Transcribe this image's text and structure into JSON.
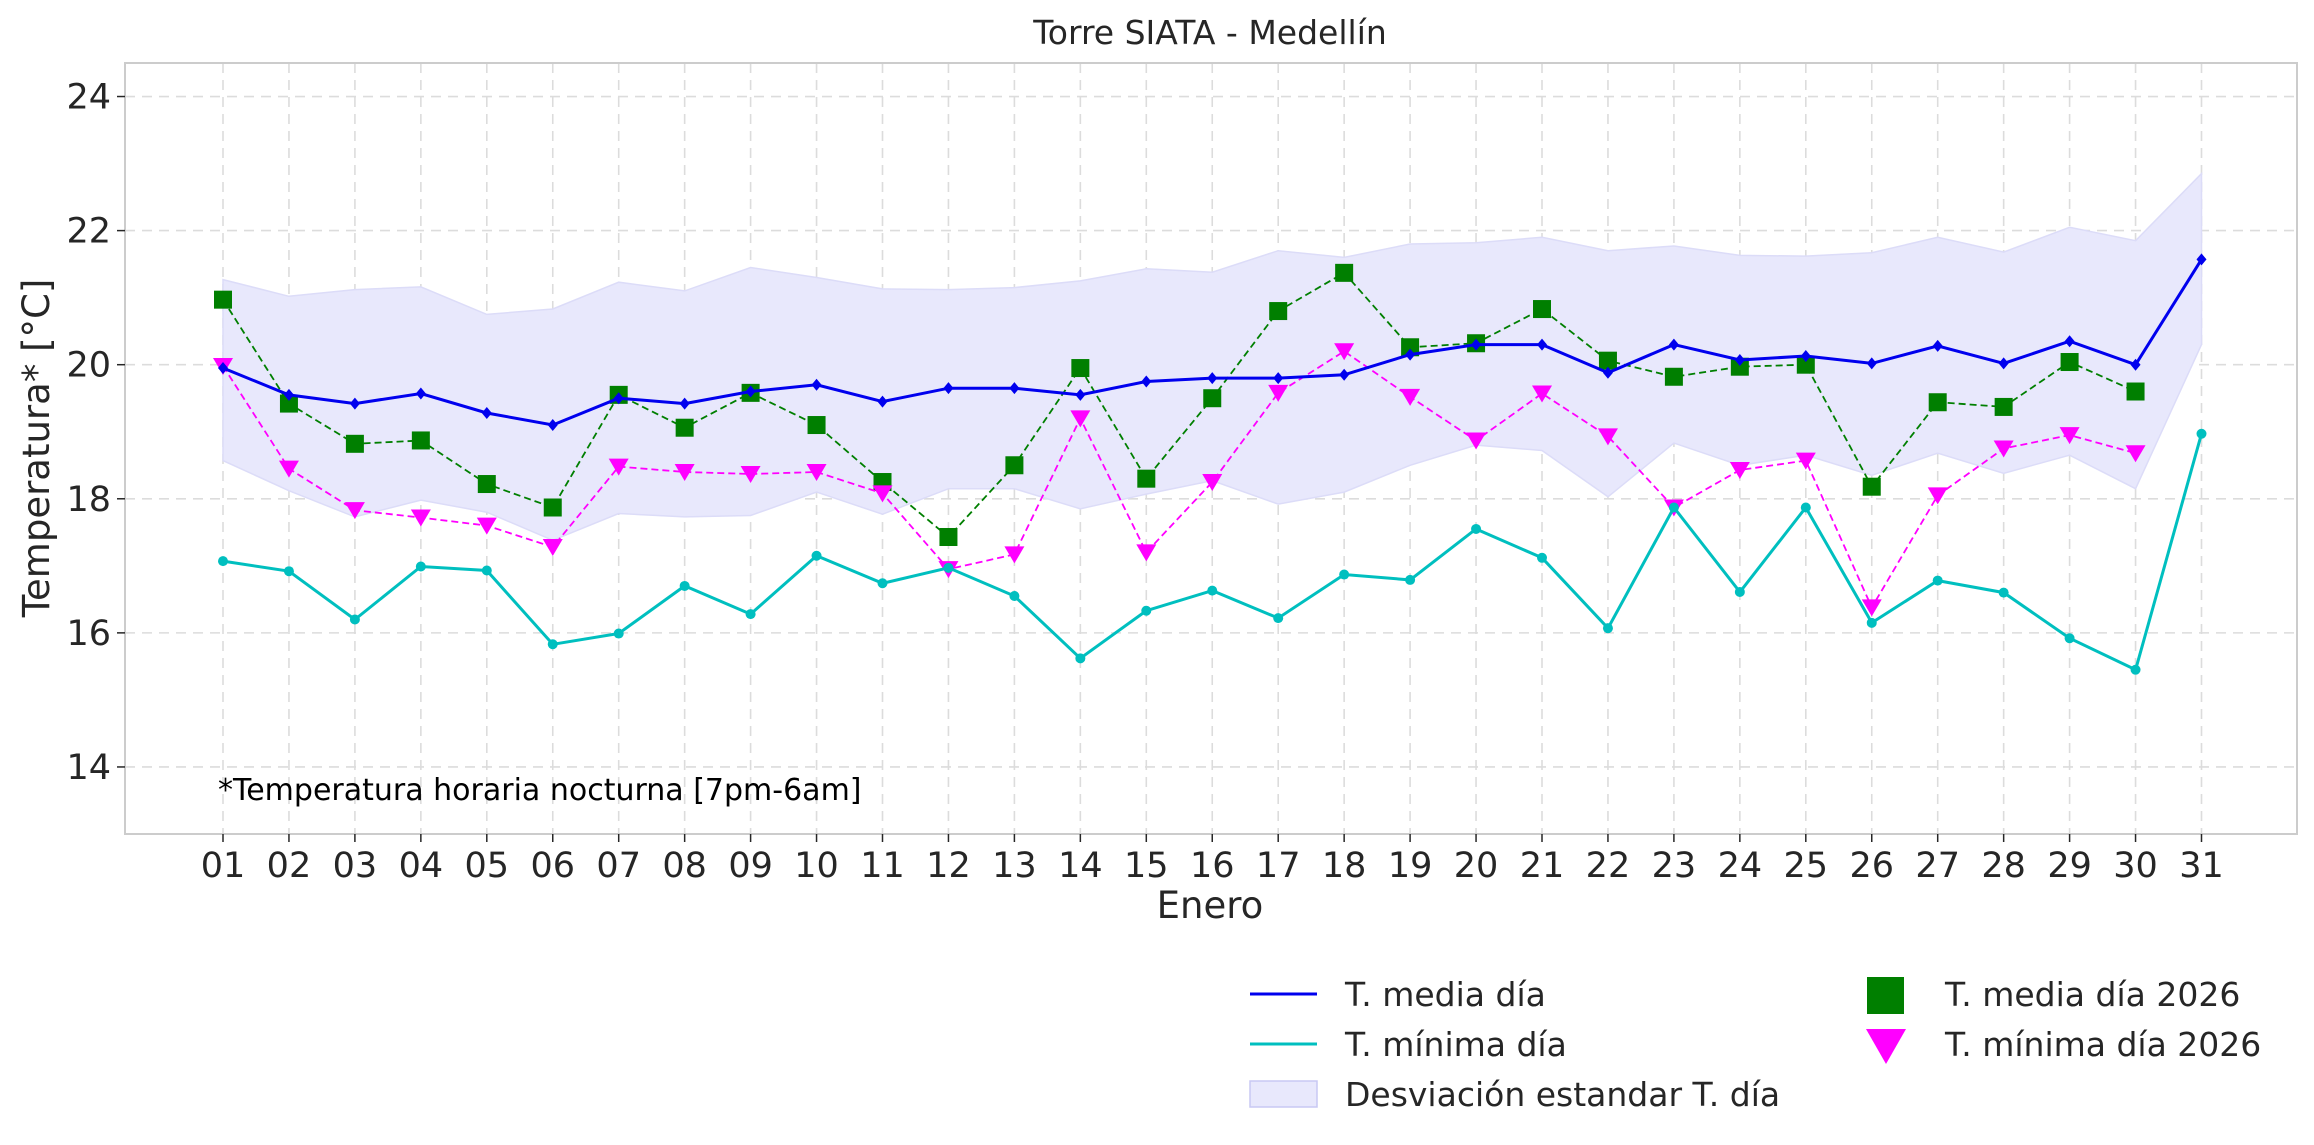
{
  "chart_data": {
    "type": "line",
    "title": "Torre SIATA - Medellín",
    "xlabel": "Enero",
    "ylabel": "Temperatura* [°C]",
    "annotation": "*Temperatura horaria nocturna [7pm-6am]",
    "categories": [
      "01",
      "02",
      "03",
      "04",
      "05",
      "06",
      "07",
      "08",
      "09",
      "10",
      "11",
      "12",
      "13",
      "14",
      "15",
      "16",
      "17",
      "18",
      "19",
      "20",
      "21",
      "22",
      "23",
      "24",
      "25",
      "26",
      "27",
      "28",
      "29",
      "30",
      "31"
    ],
    "ylim": [
      13,
      24.5
    ],
    "yticks": [
      14,
      16,
      18,
      20,
      22,
      24
    ],
    "grid": true,
    "legend_placement": "below-right",
    "series": [
      {
        "name": "T. media día",
        "kind": "line",
        "color": "#0000ee",
        "marker": "diamond",
        "values": [
          19.95,
          19.55,
          19.42,
          19.57,
          19.28,
          19.1,
          19.5,
          19.42,
          19.6,
          19.7,
          19.45,
          19.65,
          19.65,
          19.55,
          19.75,
          19.8,
          19.8,
          19.85,
          20.15,
          20.3,
          20.3,
          19.88,
          20.3,
          20.07,
          20.13,
          20.02,
          20.28,
          20.02,
          20.35,
          20.0,
          21.57
        ]
      },
      {
        "name": "T. mínima día",
        "kind": "line",
        "color": "#00bfbf",
        "marker": "circle",
        "values": [
          17.07,
          16.92,
          16.2,
          16.99,
          16.93,
          15.83,
          15.99,
          16.7,
          16.28,
          17.15,
          16.74,
          16.97,
          16.55,
          15.62,
          16.33,
          16.63,
          16.22,
          16.87,
          16.79,
          17.55,
          17.12,
          16.07,
          17.87,
          16.61,
          17.87,
          16.15,
          16.78,
          16.6,
          15.92,
          15.45,
          18.97
        ]
      },
      {
        "name": "Desviación estandar T. día",
        "kind": "band",
        "color": "#e8e8fc",
        "upper": [
          21.27,
          21.02,
          21.12,
          21.16,
          20.75,
          20.83,
          21.23,
          21.1,
          21.45,
          21.3,
          21.13,
          21.12,
          21.15,
          21.25,
          21.43,
          21.38,
          21.7,
          21.6,
          21.8,
          21.82,
          21.9,
          21.7,
          21.77,
          21.63,
          21.62,
          21.67,
          21.9,
          21.68,
          22.05,
          21.85,
          22.85
        ],
        "lower": [
          18.57,
          18.12,
          17.73,
          17.98,
          17.8,
          17.38,
          17.78,
          17.73,
          17.75,
          18.1,
          17.77,
          18.15,
          18.15,
          17.85,
          18.07,
          18.27,
          17.92,
          18.1,
          18.5,
          18.8,
          18.72,
          18.03,
          18.83,
          18.5,
          18.65,
          18.35,
          18.68,
          18.38,
          18.65,
          18.15,
          20.3
        ]
      },
      {
        "name": "T. media día 2026",
        "kind": "marker-dashed",
        "color": "#007f00",
        "marker": "square",
        "values": [
          20.97,
          19.42,
          18.82,
          18.87,
          18.22,
          17.87,
          19.55,
          19.06,
          19.58,
          19.1,
          18.25,
          17.43,
          18.5,
          19.95,
          18.3,
          19.5,
          20.8,
          21.37,
          20.26,
          20.32,
          20.83,
          20.06,
          19.82,
          19.97,
          20.0,
          18.18,
          19.44,
          19.37,
          20.04,
          19.6,
          null
        ]
      },
      {
        "name": "T. mínima día 2026",
        "kind": "marker-dashed",
        "color": "#ff00ff",
        "marker": "triangle-down",
        "values": [
          19.98,
          18.45,
          17.83,
          17.72,
          17.6,
          17.28,
          18.48,
          18.4,
          18.37,
          18.4,
          18.08,
          16.95,
          17.17,
          19.2,
          17.2,
          18.25,
          19.58,
          20.2,
          19.52,
          18.87,
          19.57,
          18.93,
          17.87,
          18.43,
          18.57,
          16.38,
          18.05,
          18.75,
          18.95,
          18.68,
          null
        ]
      }
    ]
  }
}
